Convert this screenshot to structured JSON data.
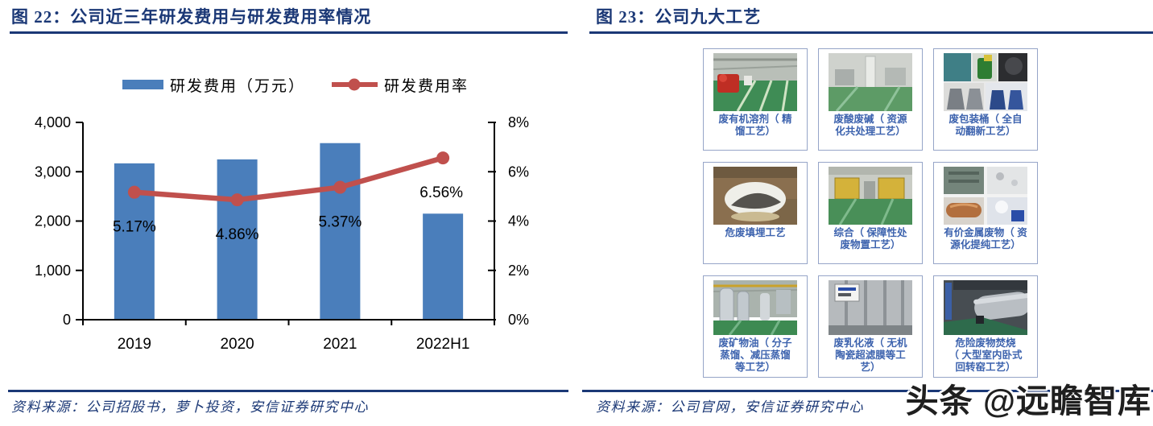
{
  "left_panel": {
    "figure_label": "图 22：",
    "title": "公司近三年研发费用与研发费用率情况",
    "source": "资料来源：公司招股书，萝卜投资，安信证券研究中心"
  },
  "chart_data": {
    "type": "bar",
    "subtype": "bar+line combo, dual axis",
    "categories": [
      "2019",
      "2020",
      "2021",
      "2022H1"
    ],
    "series": [
      {
        "name": "研发费用（万元）",
        "type": "bar",
        "axis": "left",
        "color": "#4a7ebb",
        "values": [
          3170,
          3250,
          3580,
          2150
        ]
      },
      {
        "name": "研发费用率",
        "type": "line",
        "axis": "right",
        "color": "#c0504d",
        "values": [
          5.17,
          4.86,
          5.37,
          6.56
        ],
        "labels": [
          "5.17%",
          "4.86%",
          "5.37%",
          "6.56%"
        ]
      }
    ],
    "left_axis": {
      "min": 0,
      "max": 4000,
      "ticks": [
        "0",
        "1,000",
        "2,000",
        "3,000",
        "4,000"
      ]
    },
    "right_axis": {
      "min": 0,
      "max": 8,
      "ticks": [
        "0%",
        "2%",
        "4%",
        "6%",
        "8%"
      ]
    },
    "legend_position": "top",
    "grid": false
  },
  "right_panel": {
    "figure_label": "图 23：",
    "title": "公司九大工艺",
    "source": "资料来源：公司官网，安信证券研究中心",
    "processes": [
      {
        "caption": [
          "废有机溶剂（ 精",
          "馏工艺）"
        ]
      },
      {
        "caption": [
          "废酸废碱（ 资源",
          "化共处理工艺）"
        ]
      },
      {
        "caption": [
          "废包装桶（ 全自",
          "动翻新工艺）"
        ]
      },
      {
        "caption": [
          "危废填埋工艺"
        ]
      },
      {
        "caption": [
          "综合（ 保障性处",
          "废物置工艺）"
        ]
      },
      {
        "caption": [
          "有价金属废物（ 资",
          "源化提纯工艺）"
        ]
      },
      {
        "caption": [
          "废矿物油（ 分子",
          "蒸馏、减压蒸馏",
          "等工艺）"
        ]
      },
      {
        "caption": [
          "废乳化液（ 无机",
          "陶瓷超滤膜等工",
          "艺）"
        ]
      },
      {
        "caption": [
          "危险废物焚烧",
          "（ 大型室内卧式",
          "回转窑工艺）"
        ]
      }
    ]
  },
  "watermark": "头条 @远瞻智库",
  "colors": {
    "title_navy": "#1b3876",
    "bar_blue": "#4a7ebb",
    "line_red": "#c0504d",
    "caption_blue": "#3d63ae",
    "cell_border": "#96a5c8"
  }
}
